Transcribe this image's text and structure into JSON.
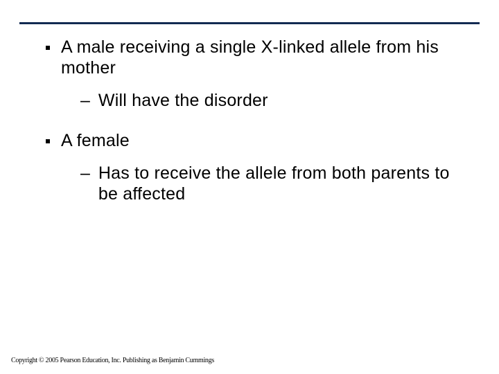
{
  "slide": {
    "items": [
      {
        "text": "A male receiving a single X-linked allele from his mother",
        "sub": [
          {
            "text": "Will have the disorder"
          }
        ]
      },
      {
        "text": "A female",
        "sub": [
          {
            "text": "Has to receive the allele from both parents to be affected"
          }
        ]
      }
    ]
  },
  "footer": {
    "copyright": "Copyright © 2005 Pearson Education, Inc. Publishing as Benjamin Cummings"
  },
  "colors": {
    "rule": "#122a52",
    "text": "#000000",
    "background": "#ffffff"
  }
}
